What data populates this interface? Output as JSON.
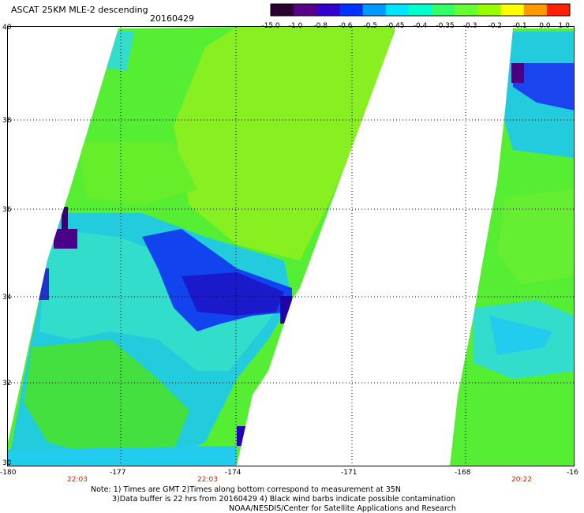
{
  "title": "ASCAT 25KM MLE-2 descending",
  "date": "20160429",
  "colorbar": {
    "labels": [
      "-15.0",
      "-1.0",
      "-0.8",
      "-0.6",
      "-0.5",
      "-0.45",
      "-0.4",
      "-0.35",
      "-0.3",
      "-0.2",
      "-0.1",
      "0.0",
      "1.0"
    ],
    "colors": [
      "#2a0033",
      "#5a0088",
      "#3300cc",
      "#0033ff",
      "#0099ff",
      "#00e5ff",
      "#00ffcc",
      "#33ff66",
      "#66ff33",
      "#99ff00",
      "#ffff00",
      "#ff9900",
      "#ff2200"
    ]
  },
  "axes": {
    "lon_labels": [
      "-180",
      "-177",
      "-174",
      "-171",
      "-168",
      "-16"
    ],
    "lat_labels": [
      "40",
      "38",
      "36",
      "34",
      "32",
      "30"
    ],
    "times": [
      "22:03",
      "22:03",
      "20:22"
    ],
    "time_color": "#cc2200"
  },
  "notes": [
    "Note: 1) Times are GMT 2)Times along bottom correspond to measurement at 35N",
    "3)Data buffer is 22 hrs from 20160429 4) Black wind barbs indicate possible contamination",
    "NOAA/NESDIS/Center for Satellite Applications and Research"
  ]
}
